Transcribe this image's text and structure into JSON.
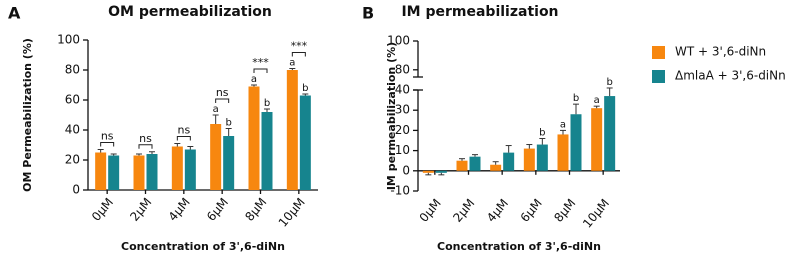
{
  "chart_data": [
    {
      "type": "bar",
      "panel_label": "A",
      "title": "OM permeabilization",
      "y_label": "OM Permeabilization (%)",
      "x_label": "Concentration of 3',6-diNn",
      "categories": [
        "0μM",
        "2μM",
        "4μM",
        "6μM",
        "8μM",
        "10μM"
      ],
      "series": [
        {
          "color": "#f7870f",
          "values": [
            25,
            23,
            29,
            44,
            69,
            80
          ],
          "errors": [
            2,
            1,
            2,
            6,
            1,
            1
          ],
          "letters": [
            null,
            null,
            null,
            "a",
            "a",
            "a"
          ]
        },
        {
          "color": "#16848e",
          "values": [
            23,
            24,
            27,
            36,
            52,
            63
          ],
          "errors": [
            1,
            1.5,
            2,
            5,
            2,
            1
          ],
          "letters": [
            null,
            null,
            null,
            "b",
            "b",
            "b"
          ]
        }
      ],
      "significance": [
        "ns",
        "ns",
        "ns",
        "ns",
        "***",
        "***"
      ],
      "ylim": [
        0,
        100
      ],
      "yticks": [
        0,
        20,
        40,
        60,
        80,
        100
      ]
    },
    {
      "type": "bar",
      "panel_label": "B",
      "title": "IM permeabilization",
      "y_label": "IM permeabilization (%)",
      "x_label": "Concentration of 3',6-diNn",
      "categories": [
        "0μM",
        "2μM",
        "4μM",
        "6μM",
        "8μM",
        "10μM"
      ],
      "series": [
        {
          "name": "WT + 3',6-diNn",
          "color": "#f7870f",
          "values": [
            -1,
            5,
            3,
            11,
            18,
            31
          ],
          "errors": [
            1,
            1,
            1.5,
            2,
            2,
            1
          ],
          "letters": [
            null,
            null,
            null,
            null,
            "a",
            "a"
          ]
        },
        {
          "name": "ΔmlaA + 3',6-diNn",
          "color": "#16848e",
          "values": [
            -1,
            7,
            9,
            13,
            28,
            37
          ],
          "errors": [
            1,
            1,
            3.5,
            3,
            5,
            4
          ],
          "letters": [
            null,
            null,
            null,
            "b",
            "b",
            "b"
          ]
        }
      ],
      "ylim": [
        -10,
        40
      ],
      "yticks": [
        -10,
        0,
        10,
        20,
        30,
        40
      ],
      "ylim_upper": [
        75,
        100
      ],
      "yticks_upper": [
        80,
        100
      ]
    }
  ]
}
